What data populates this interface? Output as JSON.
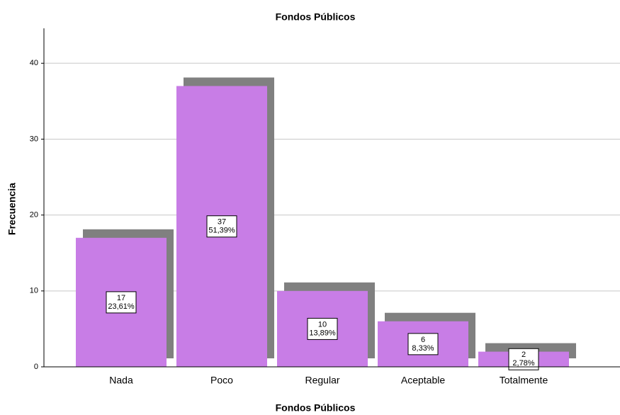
{
  "chart_data": {
    "type": "bar",
    "title": "Fondos Públicos",
    "x_label": "Fondos Públicos",
    "y_label": "Frecuencia",
    "categories": [
      "Nada",
      "Poco",
      "Regular",
      "Aceptable",
      "Totalmente"
    ],
    "values": [
      17,
      37,
      10,
      6,
      2
    ],
    "percentages": [
      23.61,
      51.39,
      13.89,
      8.33,
      2.78
    ],
    "percentage_labels": [
      "23,61%",
      "51,39%",
      "13,89%",
      "8,33%",
      "2,78%"
    ],
    "color": "#c87de6",
    "shadow_color": "#808080",
    "ylim": [
      0,
      44.6
    ],
    "yticks": [
      0,
      10,
      20,
      30,
      40
    ],
    "grid": true
  }
}
